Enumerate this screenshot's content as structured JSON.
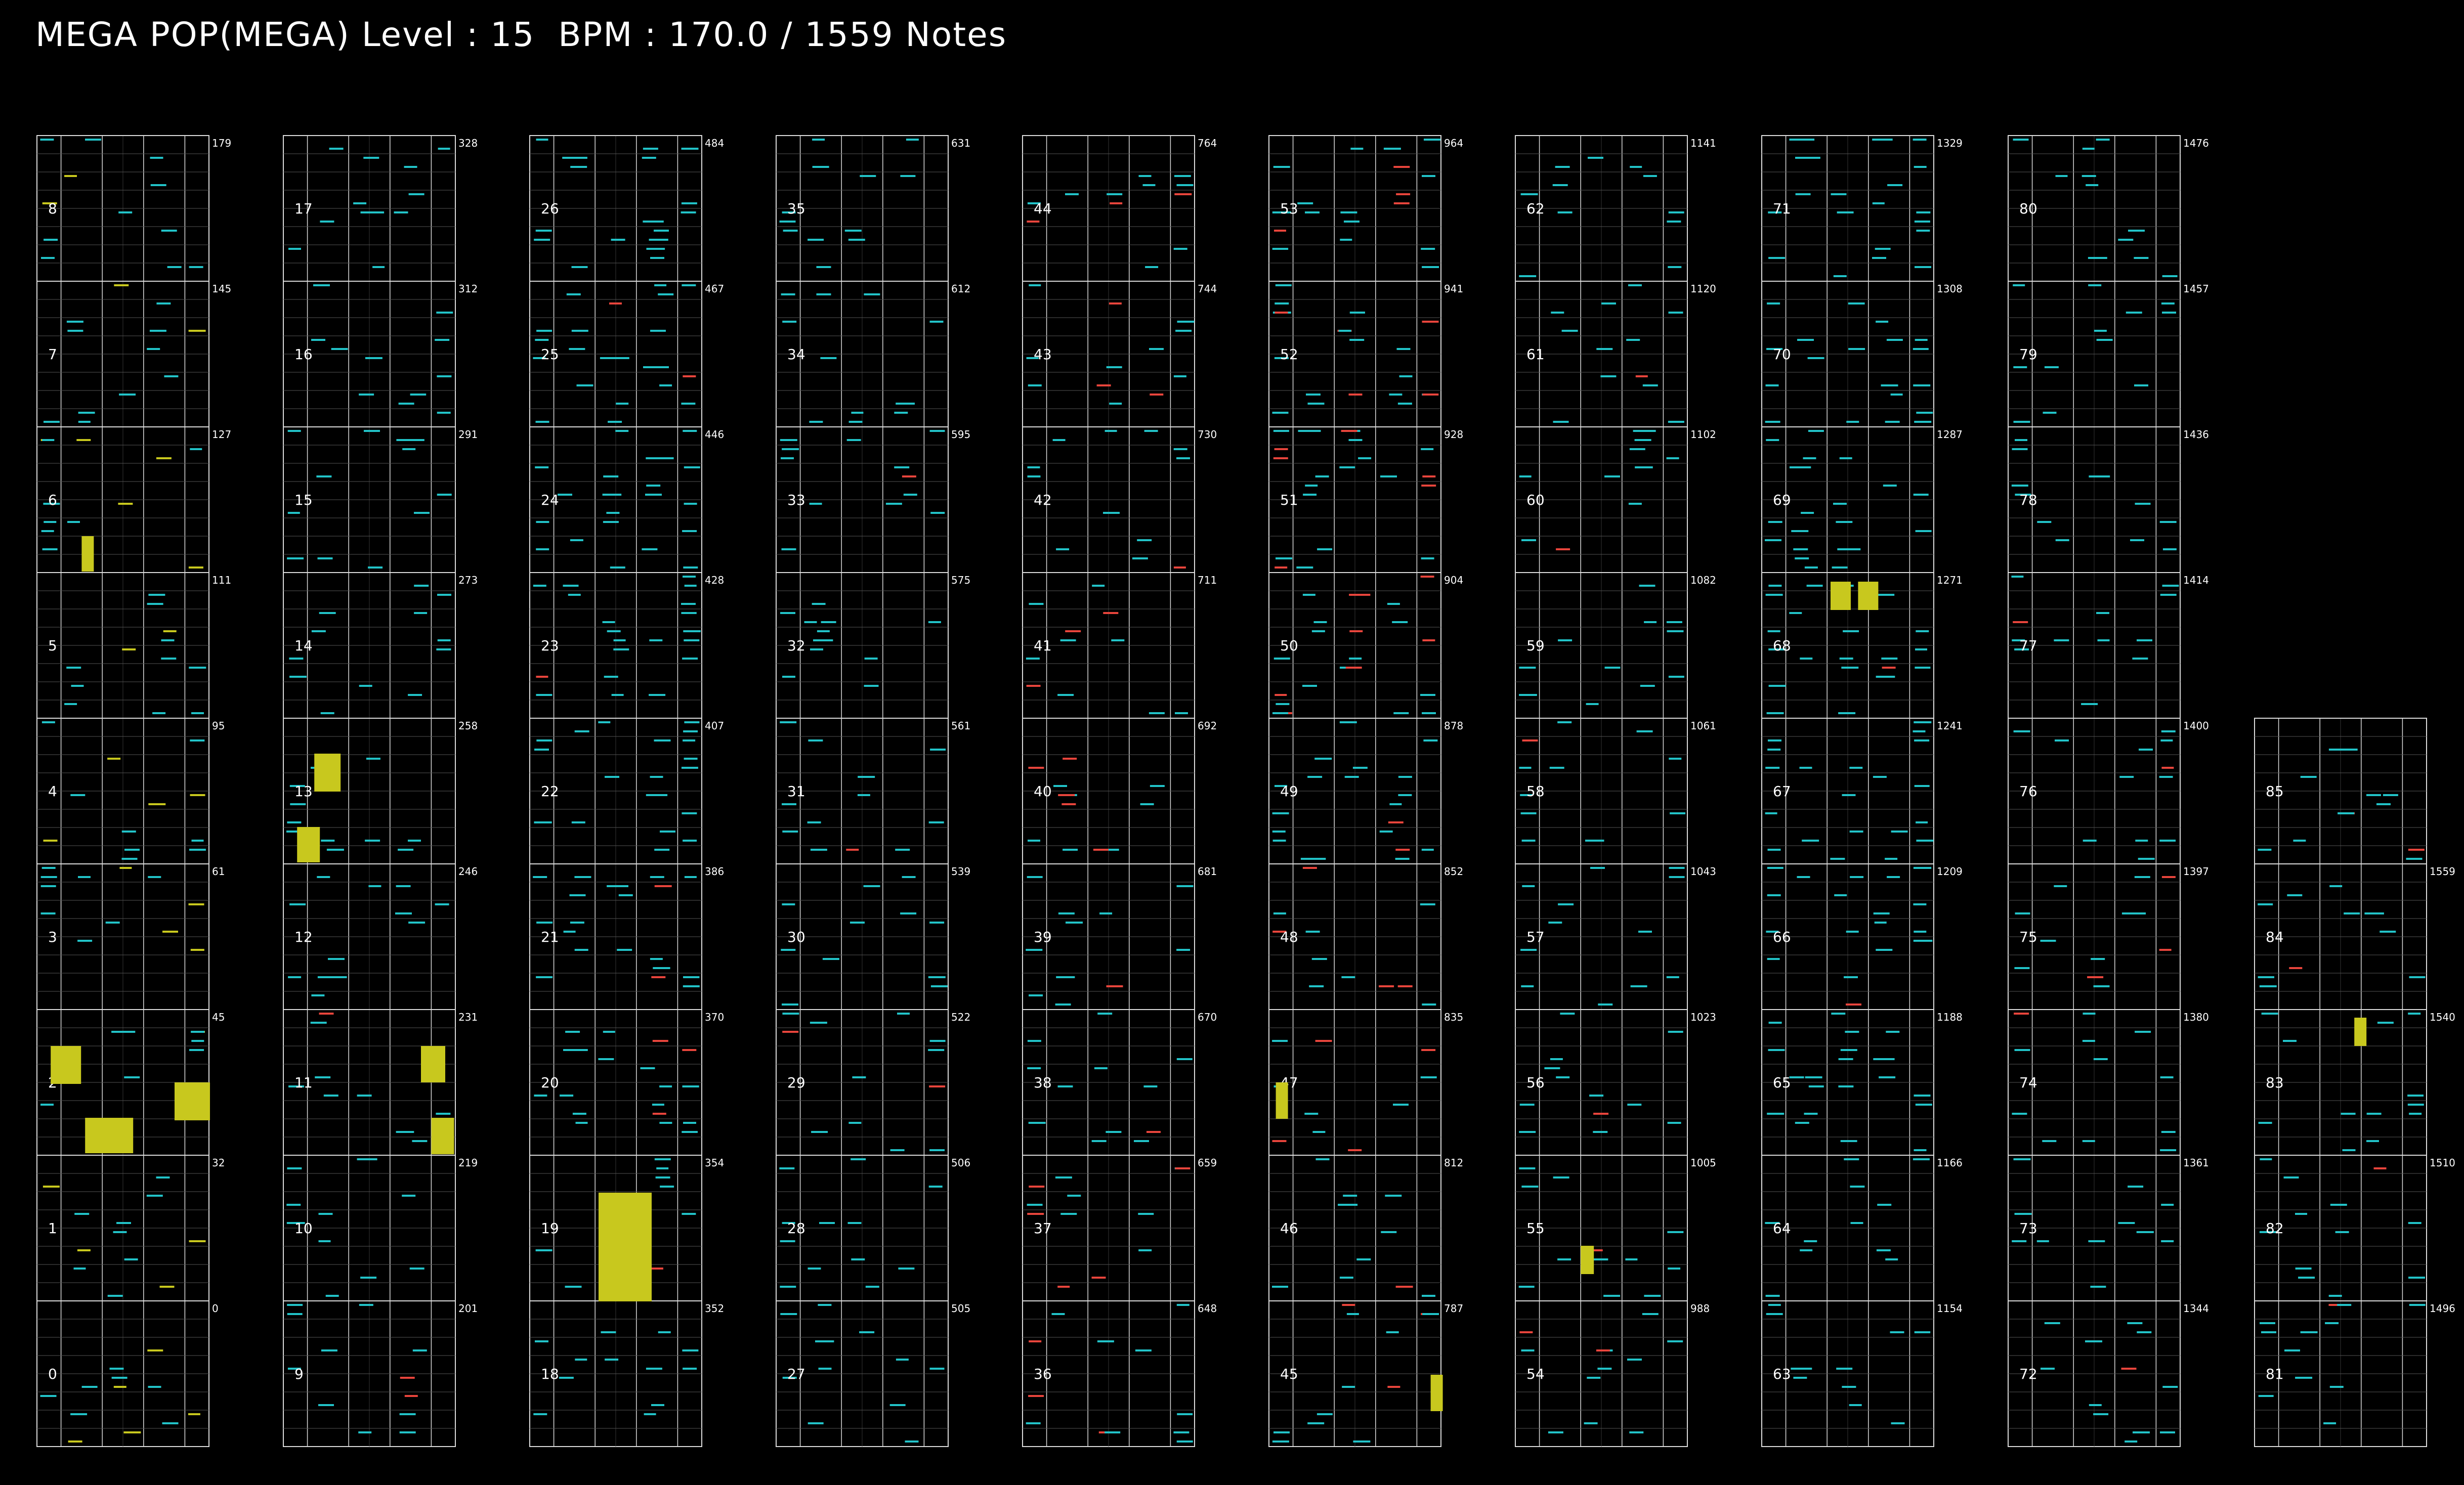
{
  "header": {
    "title": "MEGA POP(MEGA) Level : 15  BPM : 170.0 / 1559 Notes"
  },
  "colors": {
    "background": "#000000",
    "frame": "#dcdcdc",
    "grid": "#555555",
    "note": "#22c3c8",
    "special": "#e8453c",
    "hold": "#c8c81e"
  },
  "icons": {
    "note": "horizontal-bar-shape",
    "hold": "filled-rect-shape"
  },
  "columns": [
    {
      "name": "c1",
      "measures": [
        {
          "num": "0",
          "count": "0"
        },
        {
          "num": "1",
          "count": "32"
        },
        {
          "num": "2",
          "count": "45"
        },
        {
          "num": "3",
          "count": "61"
        },
        {
          "num": "4",
          "count": "95"
        },
        {
          "num": "5",
          "count": "111"
        },
        {
          "num": "6",
          "count": "127"
        },
        {
          "num": "7",
          "count": "145"
        },
        {
          "num": "8",
          "count": "179"
        }
      ]
    },
    {
      "name": "c2",
      "measures": [
        {
          "num": "9",
          "count": "201"
        },
        {
          "num": "10",
          "count": "219"
        },
        {
          "num": "11",
          "count": "231"
        },
        {
          "num": "12",
          "count": "246"
        },
        {
          "num": "13",
          "count": "258"
        },
        {
          "num": "14",
          "count": "273"
        },
        {
          "num": "15",
          "count": "291"
        },
        {
          "num": "16",
          "count": "312"
        },
        {
          "num": "17",
          "count": "328"
        }
      ]
    },
    {
      "name": "c3",
      "measures": [
        {
          "num": "18",
          "count": "352"
        },
        {
          "num": "19",
          "count": "354"
        },
        {
          "num": "20",
          "count": "370"
        },
        {
          "num": "21",
          "count": "386"
        },
        {
          "num": "22",
          "count": "407"
        },
        {
          "num": "23",
          "count": "428"
        },
        {
          "num": "24",
          "count": "446"
        },
        {
          "num": "25",
          "count": "467"
        },
        {
          "num": "26",
          "count": "484"
        }
      ]
    },
    {
      "name": "c4",
      "measures": [
        {
          "num": "27",
          "count": "505"
        },
        {
          "num": "28",
          "count": "506"
        },
        {
          "num": "29",
          "count": "522"
        },
        {
          "num": "30",
          "count": "539"
        },
        {
          "num": "31",
          "count": "561"
        },
        {
          "num": "32",
          "count": "575"
        },
        {
          "num": "33",
          "count": "595"
        },
        {
          "num": "34",
          "count": "612"
        },
        {
          "num": "35",
          "count": "631"
        }
      ]
    },
    {
      "name": "c5",
      "measures": [
        {
          "num": "36",
          "count": "648"
        },
        {
          "num": "37",
          "count": "659"
        },
        {
          "num": "38",
          "count": "670"
        },
        {
          "num": "39",
          "count": "681"
        },
        {
          "num": "40",
          "count": "692"
        },
        {
          "num": "41",
          "count": "711"
        },
        {
          "num": "42",
          "count": "730"
        },
        {
          "num": "43",
          "count": "744"
        },
        {
          "num": "44",
          "count": "764"
        }
      ]
    },
    {
      "name": "c6",
      "measures": [
        {
          "num": "45",
          "count": "787"
        },
        {
          "num": "46",
          "count": "812"
        },
        {
          "num": "47",
          "count": "835"
        },
        {
          "num": "48",
          "count": "852"
        },
        {
          "num": "49",
          "count": "878"
        },
        {
          "num": "50",
          "count": "904"
        },
        {
          "num": "51",
          "count": "928"
        },
        {
          "num": "52",
          "count": "941"
        },
        {
          "num": "53",
          "count": "964"
        }
      ]
    },
    {
      "name": "c7",
      "measures": [
        {
          "num": "54",
          "count": "988"
        },
        {
          "num": "55",
          "count": "1005"
        },
        {
          "num": "56",
          "count": "1023"
        },
        {
          "num": "57",
          "count": "1043"
        },
        {
          "num": "58",
          "count": "1061"
        },
        {
          "num": "59",
          "count": "1082"
        },
        {
          "num": "60",
          "count": "1102"
        },
        {
          "num": "61",
          "count": "1120"
        },
        {
          "num": "62",
          "count": "1141"
        }
      ]
    },
    {
      "name": "c8",
      "measures": [
        {
          "num": "63",
          "count": "1154"
        },
        {
          "num": "64",
          "count": "1166"
        },
        {
          "num": "65",
          "count": "1188"
        },
        {
          "num": "66",
          "count": "1209"
        },
        {
          "num": "67",
          "count": "1241"
        },
        {
          "num": "68",
          "count": "1271"
        },
        {
          "num": "69",
          "count": "1287"
        },
        {
          "num": "70",
          "count": "1308"
        },
        {
          "num": "71",
          "count": "1329"
        }
      ]
    },
    {
      "name": "c9",
      "measures": [
        {
          "num": "72",
          "count": "1344"
        },
        {
          "num": "73",
          "count": "1361"
        },
        {
          "num": "74",
          "count": "1380"
        },
        {
          "num": "75",
          "count": "1397"
        },
        {
          "num": "76",
          "count": "1400"
        },
        {
          "num": "77",
          "count": "1414"
        },
        {
          "num": "78",
          "count": "1436"
        },
        {
          "num": "79",
          "count": "1457"
        },
        {
          "num": "80",
          "count": "1476"
        }
      ]
    },
    {
      "name": "c10",
      "measures": [
        {
          "num": "81",
          "count": "1496"
        },
        {
          "num": "82",
          "count": "1510"
        },
        {
          "num": "83",
          "count": "1540"
        },
        {
          "num": "84",
          "count": "1559"
        },
        {
          "num": "85",
          "count": ""
        }
      ]
    }
  ]
}
